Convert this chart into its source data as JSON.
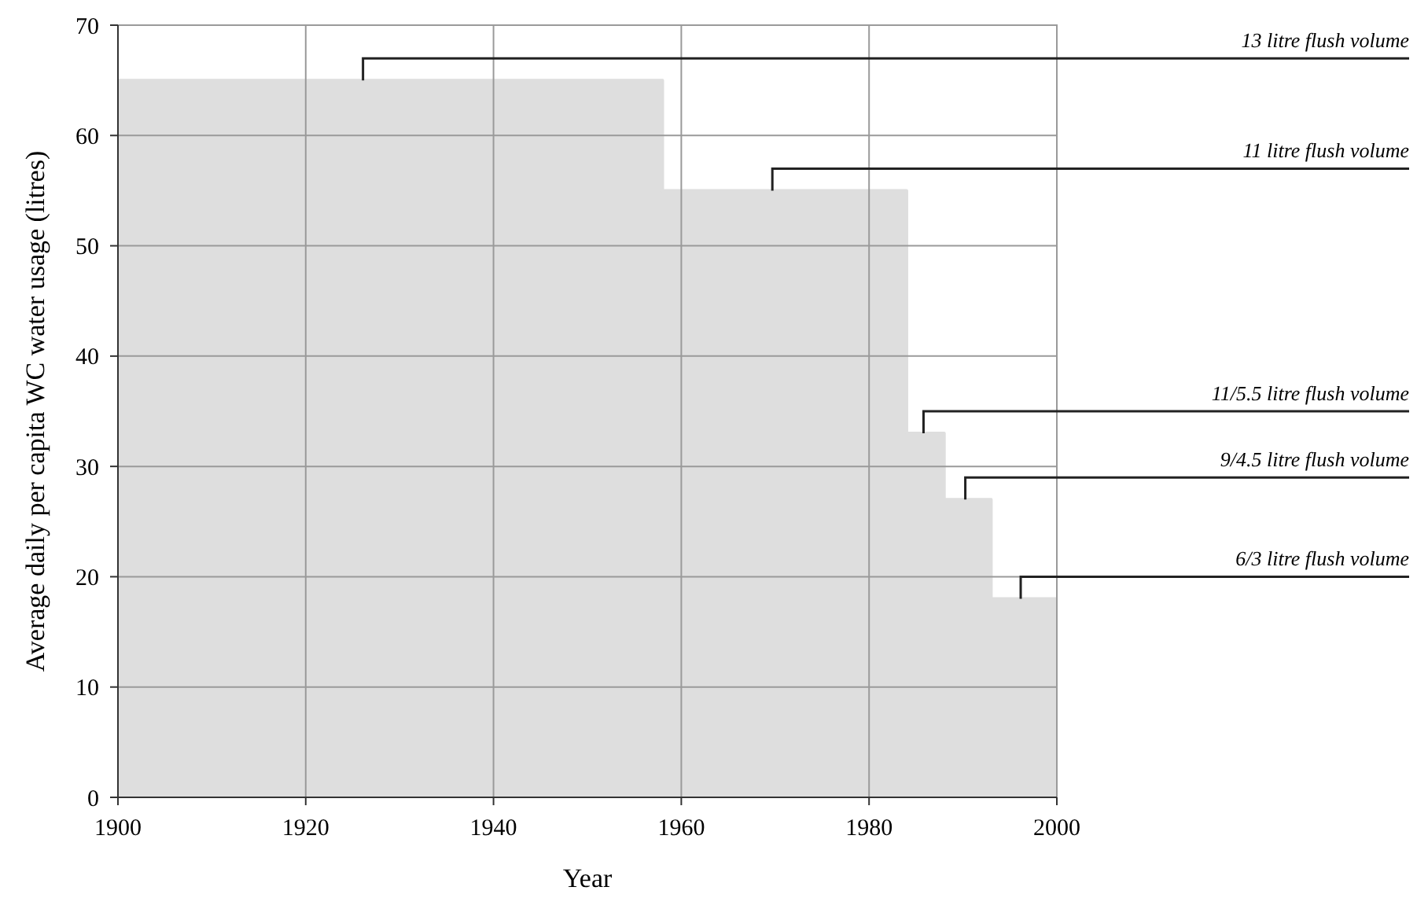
{
  "chart_data": {
    "type": "step",
    "xlabel": "Year",
    "ylabel": "Average daily per capita WC water usage (litres)",
    "x": [
      1900,
      1958,
      1984,
      1988,
      1993,
      2000
    ],
    "values": [
      65,
      55,
      33,
      27,
      18,
      18
    ],
    "color": "#dedede",
    "xlim": [
      1900,
      2000
    ],
    "xticks": [
      1900,
      1920,
      1940,
      1960,
      1980,
      2000
    ],
    "ylim": [
      0,
      70
    ],
    "yticks": [
      0,
      10,
      20,
      30,
      40,
      50,
      60,
      70
    ],
    "grid": true,
    "annotations": [
      "13 litre flush volume",
      "11 litre flush volume",
      "11/5.5 litre flush volume",
      "9/4.5 litre flush volume",
      "6/3 litre flush volume"
    ]
  }
}
